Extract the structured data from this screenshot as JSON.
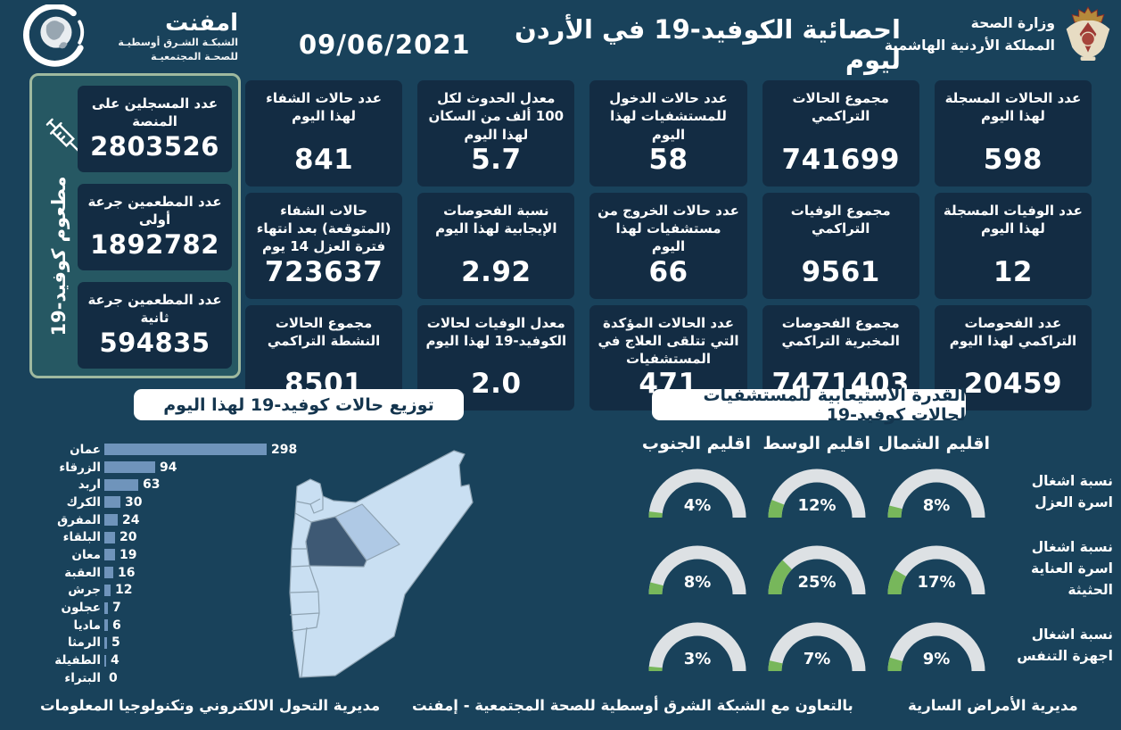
{
  "colors": {
    "background": "#19425B",
    "card": "#132C43",
    "bar": "#6F94BB",
    "pill_text": "#14354E",
    "gauge_track": "#DDE1E4",
    "gauge_fill": "#77B75B",
    "panel_bg": "#265863",
    "panel_border": "#9FB99F",
    "map_light": "#C9DFF2",
    "map_mid": "#AFC9E5",
    "map_dark": "#3E5974"
  },
  "header": {
    "title": "احصائية الكوفيد-19 في الأردن ليوم",
    "date": "09/06/2021",
    "emphnet_logo": {
      "name": "امفنت",
      "line1": "الشبكـة الشـرق أوسطيـة",
      "line2": "للصحـة المجتمعيـة"
    },
    "ministry_logo": {
      "line1": "وزارة الصحة",
      "line2": "المملكة الأردنية الهاشمية"
    }
  },
  "sidebar": {
    "vertical_label": "مطعوم كوفيد-19",
    "cards": [
      {
        "label": "عدد المسجلين على المنصة",
        "value": "2803526"
      },
      {
        "label": "عدد المطعمين جرعة أولى",
        "value": "1892782"
      },
      {
        "label": "عدد المطعمين جرعة ثانية",
        "value": "594835"
      }
    ]
  },
  "stats": [
    {
      "label": "عدد الحالات المسجلة لهذا اليوم",
      "value": "598"
    },
    {
      "label": "مجموع الحالات التراكمي",
      "value": "741699"
    },
    {
      "label": "عدد حالات الدخول للمستشفيات لهذا اليوم",
      "value": "58"
    },
    {
      "label": "معدل الحدوث لكل 100 ألف من السكان لهذا اليوم",
      "value": "5.7"
    },
    {
      "label": "عدد حالات الشفاء لهذا اليوم",
      "value": "841"
    },
    {
      "label": "عدد الوفيات المسجلة لهذا اليوم",
      "value": "12"
    },
    {
      "label": "مجموع الوفيات التراكمي",
      "value": "9561"
    },
    {
      "label": "عدد حالات الخروج من مستشفيات لهذا اليوم",
      "value": "66"
    },
    {
      "label": "نسبة الفحوصات الإيجابية لهذا اليوم",
      "value": "2.92"
    },
    {
      "label": "حالات الشفاء (المتوقعة) بعد انتهاء فترة العزل 14 يوم",
      "value": "723637"
    },
    {
      "label": "عدد الفحوصات التراكمي لهذا اليوم",
      "value": "20459"
    },
    {
      "label": "مجموع الفحوصات المخبرية التراكمي",
      "value": "7471403"
    },
    {
      "label": "عدد الحالات المؤكدة التي تتلقى العلاج في المستشفيات",
      "value": "471"
    },
    {
      "label": "معدل الوفيات لحالات الكوفيد-19 لهذا اليوم",
      "value": "2.0"
    },
    {
      "label": "مجموع الحالات النشطة التراكمي",
      "value": "8501"
    }
  ],
  "chart_data": [
    {
      "type": "bar",
      "orientation": "horizontal",
      "title": "توزيع حالات كوفيد-19 لهذا اليوم",
      "categories": [
        "عمان",
        "الزرقاء",
        "اربد",
        "الكرك",
        "المفرق",
        "البلقاء",
        "معان",
        "العقبة",
        "جرش",
        "عجلون",
        "ماديا",
        "الرمثا",
        "الطفيلة",
        "البتراء"
      ],
      "values": [
        298,
        94,
        63,
        30,
        24,
        20,
        19,
        16,
        12,
        7,
        6,
        5,
        4,
        0
      ],
      "xlim": [
        0,
        300
      ],
      "bar_color": "#6F94BB",
      "value_labels": true,
      "grid": false,
      "legend": "none"
    },
    {
      "type": "table",
      "display": "semicircle-gauges",
      "title": "القدرة الاستيعابية للمستشفيات لحالات كوفيد-19",
      "columns": [
        "اقليم الجنوب",
        "اقليم الوسط",
        "اقليم الشمال"
      ],
      "rows": [
        {
          "label": "نسبة اشغال اسرة العزل",
          "values_pct": [
            4,
            12,
            8
          ]
        },
        {
          "label": "نسبة اشغال اسرة العناية الحثيثة",
          "values_pct": [
            8,
            25,
            17
          ]
        },
        {
          "label": "نسبة اشغال اجهزة التنفس",
          "values_pct": [
            3,
            7,
            9
          ]
        }
      ],
      "gauge_colors": {
        "track": "#DDE1E4",
        "fill": "#77B75B"
      }
    }
  ],
  "footer": {
    "left": "مديرية التحول الالكتروني وتكنولوجيا المعلومات",
    "center": "بالتعاون مع الشبكة الشرق أوسطية للصحة المجتمعية - إمفنت",
    "right": "مديرية الأمراض السارية"
  }
}
